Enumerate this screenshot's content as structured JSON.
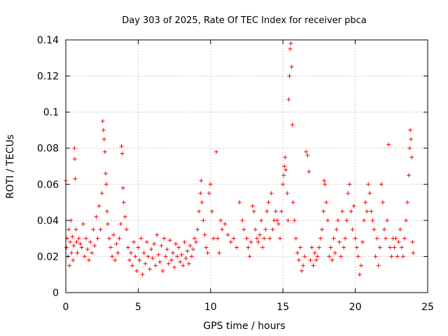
{
  "chart_data": {
    "type": "scatter",
    "title": "Day 303 of 2025, Rate Of TEC Index for receiver pbca",
    "xlabel": "GPS time / hours",
    "ylabel": "ROTI / TECUs",
    "xlim": [
      0,
      25
    ],
    "ylim": [
      0,
      0.14
    ],
    "x_ticks": [
      "0",
      "5",
      "10",
      "15",
      "20",
      "25"
    ],
    "y_ticks": [
      "0",
      "0.02",
      "0.04",
      "0.06",
      "0.08",
      "0.1",
      "0.12",
      "0.14"
    ],
    "grid": true,
    "marker": "plus",
    "color": "#ff0000",
    "series": [
      {
        "points": [
          [
            0.0,
            0.062
          ],
          [
            0.05,
            0.025
          ],
          [
            0.1,
            0.03
          ],
          [
            0.15,
            0.02
          ],
          [
            0.2,
            0.035
          ],
          [
            0.25,
            0.015
          ],
          [
            0.3,
            0.028
          ],
          [
            0.35,
            0.04
          ],
          [
            0.4,
            0.022
          ],
          [
            0.45,
            0.031
          ],
          [
            0.5,
            0.018
          ],
          [
            0.55,
            0.026
          ],
          [
            0.6,
            0.08
          ],
          [
            0.62,
            0.074
          ],
          [
            0.65,
            0.063
          ],
          [
            0.7,
            0.035
          ],
          [
            0.75,
            0.028
          ],
          [
            0.8,
            0.022
          ],
          [
            0.9,
            0.03
          ],
          [
            1.0,
            0.027
          ],
          [
            1.1,
            0.025
          ],
          [
            1.2,
            0.038
          ],
          [
            1.3,
            0.02
          ],
          [
            1.4,
            0.03
          ],
          [
            1.5,
            0.024
          ],
          [
            1.6,
            0.018
          ],
          [
            1.7,
            0.028
          ],
          [
            1.8,
            0.022
          ],
          [
            1.9,
            0.035
          ],
          [
            2.0,
            0.026
          ],
          [
            2.1,
            0.042
          ],
          [
            2.2,
            0.03
          ],
          [
            2.3,
            0.048
          ],
          [
            2.4,
            0.035
          ],
          [
            2.5,
            0.055
          ],
          [
            2.55,
            0.095
          ],
          [
            2.6,
            0.09
          ],
          [
            2.65,
            0.085
          ],
          [
            2.7,
            0.078
          ],
          [
            2.75,
            0.066
          ],
          [
            2.8,
            0.06
          ],
          [
            2.85,
            0.045
          ],
          [
            2.9,
            0.038
          ],
          [
            3.0,
            0.03
          ],
          [
            3.1,
            0.025
          ],
          [
            3.2,
            0.02
          ],
          [
            3.3,
            0.032
          ],
          [
            3.4,
            0.018
          ],
          [
            3.5,
            0.027
          ],
          [
            3.6,
            0.022
          ],
          [
            3.7,
            0.03
          ],
          [
            3.8,
            0.038
          ],
          [
            3.85,
            0.081
          ],
          [
            3.9,
            0.077
          ],
          [
            3.95,
            0.058
          ],
          [
            4.0,
            0.05
          ],
          [
            4.1,
            0.042
          ],
          [
            4.2,
            0.035
          ],
          [
            4.3,
            0.025
          ],
          [
            4.4,
            0.018
          ],
          [
            4.5,
            0.022
          ],
          [
            4.6,
            0.015
          ],
          [
            4.7,
            0.028
          ],
          [
            4.8,
            0.02
          ],
          [
            4.9,
            0.012
          ],
          [
            5.0,
            0.025
          ],
          [
            5.1,
            0.018
          ],
          [
            5.2,
            0.03
          ],
          [
            5.3,
            0.01
          ],
          [
            5.4,
            0.022
          ],
          [
            5.5,
            0.016
          ],
          [
            5.6,
            0.028
          ],
          [
            5.7,
            0.02
          ],
          [
            5.8,
            0.013
          ],
          [
            5.9,
            0.024
          ],
          [
            6.0,
            0.019
          ],
          [
            6.1,
            0.027
          ],
          [
            6.2,
            0.015
          ],
          [
            6.3,
            0.032
          ],
          [
            6.4,
            0.021
          ],
          [
            6.5,
            0.017
          ],
          [
            6.6,
            0.026
          ],
          [
            6.7,
            0.012
          ],
          [
            6.8,
            0.03
          ],
          [
            6.9,
            0.02
          ],
          [
            7.0,
            0.024
          ],
          [
            7.1,
            0.016
          ],
          [
            7.2,
            0.029
          ],
          [
            7.3,
            0.018
          ],
          [
            7.4,
            0.022
          ],
          [
            7.5,
            0.014
          ],
          [
            7.6,
            0.027
          ],
          [
            7.7,
            0.02
          ],
          [
            7.8,
            0.025
          ],
          [
            7.9,
            0.017
          ],
          [
            8.0,
            0.021
          ],
          [
            8.1,
            0.015
          ],
          [
            8.2,
            0.028
          ],
          [
            8.3,
            0.019
          ],
          [
            8.4,
            0.023
          ],
          [
            8.5,
            0.016
          ],
          [
            8.6,
            0.026
          ],
          [
            8.7,
            0.02
          ],
          [
            8.8,
            0.024
          ],
          [
            8.9,
            0.03
          ],
          [
            9.0,
            0.028
          ],
          [
            9.1,
            0.035
          ],
          [
            9.2,
            0.045
          ],
          [
            9.3,
            0.055
          ],
          [
            9.35,
            0.062
          ],
          [
            9.4,
            0.05
          ],
          [
            9.5,
            0.04
          ],
          [
            9.6,
            0.032
          ],
          [
            9.7,
            0.025
          ],
          [
            9.8,
            0.022
          ],
          [
            9.9,
            0.055
          ],
          [
            10.0,
            0.06
          ],
          [
            10.1,
            0.045
          ],
          [
            10.2,
            0.03
          ],
          [
            10.4,
            0.078
          ],
          [
            10.5,
            0.03
          ],
          [
            10.6,
            0.022
          ],
          [
            10.7,
            0.04
          ],
          [
            10.8,
            0.035
          ],
          [
            11.0,
            0.038
          ],
          [
            11.2,
            0.032
          ],
          [
            11.4,
            0.028
          ],
          [
            11.6,
            0.03
          ],
          [
            11.8,
            0.025
          ],
          [
            12.0,
            0.05
          ],
          [
            12.2,
            0.04
          ],
          [
            12.3,
            0.035
          ],
          [
            12.5,
            0.03
          ],
          [
            12.6,
            0.025
          ],
          [
            12.7,
            0.02
          ],
          [
            12.8,
            0.028
          ],
          [
            12.9,
            0.048
          ],
          [
            13.0,
            0.045
          ],
          [
            13.1,
            0.035
          ],
          [
            13.2,
            0.03
          ],
          [
            13.3,
            0.028
          ],
          [
            13.4,
            0.032
          ],
          [
            13.5,
            0.04
          ],
          [
            13.6,
            0.025
          ],
          [
            13.7,
            0.03
          ],
          [
            13.8,
            0.035
          ],
          [
            13.9,
            0.045
          ],
          [
            14.0,
            0.05
          ],
          [
            14.1,
            0.03
          ],
          [
            14.2,
            0.055
          ],
          [
            14.3,
            0.035
          ],
          [
            14.4,
            0.04
          ],
          [
            14.5,
            0.045
          ],
          [
            14.6,
            0.04
          ],
          [
            14.7,
            0.038
          ],
          [
            14.8,
            0.03
          ],
          [
            14.9,
            0.045
          ],
          [
            15.0,
            0.06
          ],
          [
            15.05,
            0.065
          ],
          [
            15.1,
            0.07
          ],
          [
            15.15,
            0.075
          ],
          [
            15.2,
            0.068
          ],
          [
            15.3,
            0.055
          ],
          [
            15.35,
            0.04
          ],
          [
            15.4,
            0.107
          ],
          [
            15.45,
            0.12
          ],
          [
            15.5,
            0.135
          ],
          [
            15.55,
            0.138
          ],
          [
            15.6,
            0.125
          ],
          [
            15.65,
            0.093
          ],
          [
            15.7,
            0.05
          ],
          [
            15.8,
            0.04
          ],
          [
            15.9,
            0.03
          ],
          [
            16.0,
            0.022
          ],
          [
            16.1,
            0.018
          ],
          [
            16.2,
            0.025
          ],
          [
            16.3,
            0.012
          ],
          [
            16.4,
            0.015
          ],
          [
            16.5,
            0.02
          ],
          [
            16.6,
            0.078
          ],
          [
            16.7,
            0.076
          ],
          [
            16.8,
            0.067
          ],
          [
            16.9,
            0.018
          ],
          [
            17.0,
            0.025
          ],
          [
            17.1,
            0.015
          ],
          [
            17.2,
            0.022
          ],
          [
            17.3,
            0.018
          ],
          [
            17.4,
            0.02
          ],
          [
            17.5,
            0.025
          ],
          [
            17.6,
            0.03
          ],
          [
            17.7,
            0.035
          ],
          [
            17.8,
            0.045
          ],
          [
            17.85,
            0.062
          ],
          [
            17.9,
            0.06
          ],
          [
            18.0,
            0.05
          ],
          [
            18.1,
            0.04
          ],
          [
            18.2,
            0.02
          ],
          [
            18.3,
            0.025
          ],
          [
            18.4,
            0.018
          ],
          [
            18.5,
            0.03
          ],
          [
            18.6,
            0.022
          ],
          [
            18.7,
            0.035
          ],
          [
            18.8,
            0.04
          ],
          [
            18.9,
            0.028
          ],
          [
            19.0,
            0.02
          ],
          [
            19.1,
            0.045
          ],
          [
            19.2,
            0.025
          ],
          [
            19.3,
            0.03
          ],
          [
            19.4,
            0.04
          ],
          [
            19.5,
            0.055
          ],
          [
            19.6,
            0.06
          ],
          [
            19.7,
            0.045
          ],
          [
            19.8,
            0.035
          ],
          [
            19.9,
            0.048
          ],
          [
            20.0,
            0.03
          ],
          [
            20.1,
            0.025
          ],
          [
            20.2,
            0.02
          ],
          [
            20.3,
            0.01
          ],
          [
            20.4,
            0.015
          ],
          [
            20.5,
            0.028
          ],
          [
            20.6,
            0.04
          ],
          [
            20.7,
            0.05
          ],
          [
            20.8,
            0.045
          ],
          [
            20.9,
            0.06
          ],
          [
            21.0,
            0.055
          ],
          [
            21.1,
            0.045
          ],
          [
            21.2,
            0.04
          ],
          [
            21.3,
            0.035
          ],
          [
            21.4,
            0.02
          ],
          [
            21.5,
            0.03
          ],
          [
            21.6,
            0.015
          ],
          [
            21.7,
            0.025
          ],
          [
            21.8,
            0.06
          ],
          [
            21.9,
            0.05
          ],
          [
            22.0,
            0.035
          ],
          [
            22.1,
            0.03
          ],
          [
            22.2,
            0.04
          ],
          [
            22.3,
            0.082
          ],
          [
            22.4,
            0.025
          ],
          [
            22.5,
            0.02
          ],
          [
            22.6,
            0.03
          ],
          [
            22.7,
            0.025
          ],
          [
            22.8,
            0.03
          ],
          [
            22.9,
            0.02
          ],
          [
            23.0,
            0.028
          ],
          [
            23.1,
            0.035
          ],
          [
            23.2,
            0.025
          ],
          [
            23.3,
            0.02
          ],
          [
            23.4,
            0.03
          ],
          [
            23.5,
            0.04
          ],
          [
            23.6,
            0.05
          ],
          [
            23.7,
            0.065
          ],
          [
            23.75,
            0.08
          ],
          [
            23.8,
            0.09
          ],
          [
            23.85,
            0.085
          ],
          [
            23.9,
            0.075
          ],
          [
            23.95,
            0.028
          ],
          [
            24.0,
            0.022
          ]
        ]
      }
    ]
  }
}
